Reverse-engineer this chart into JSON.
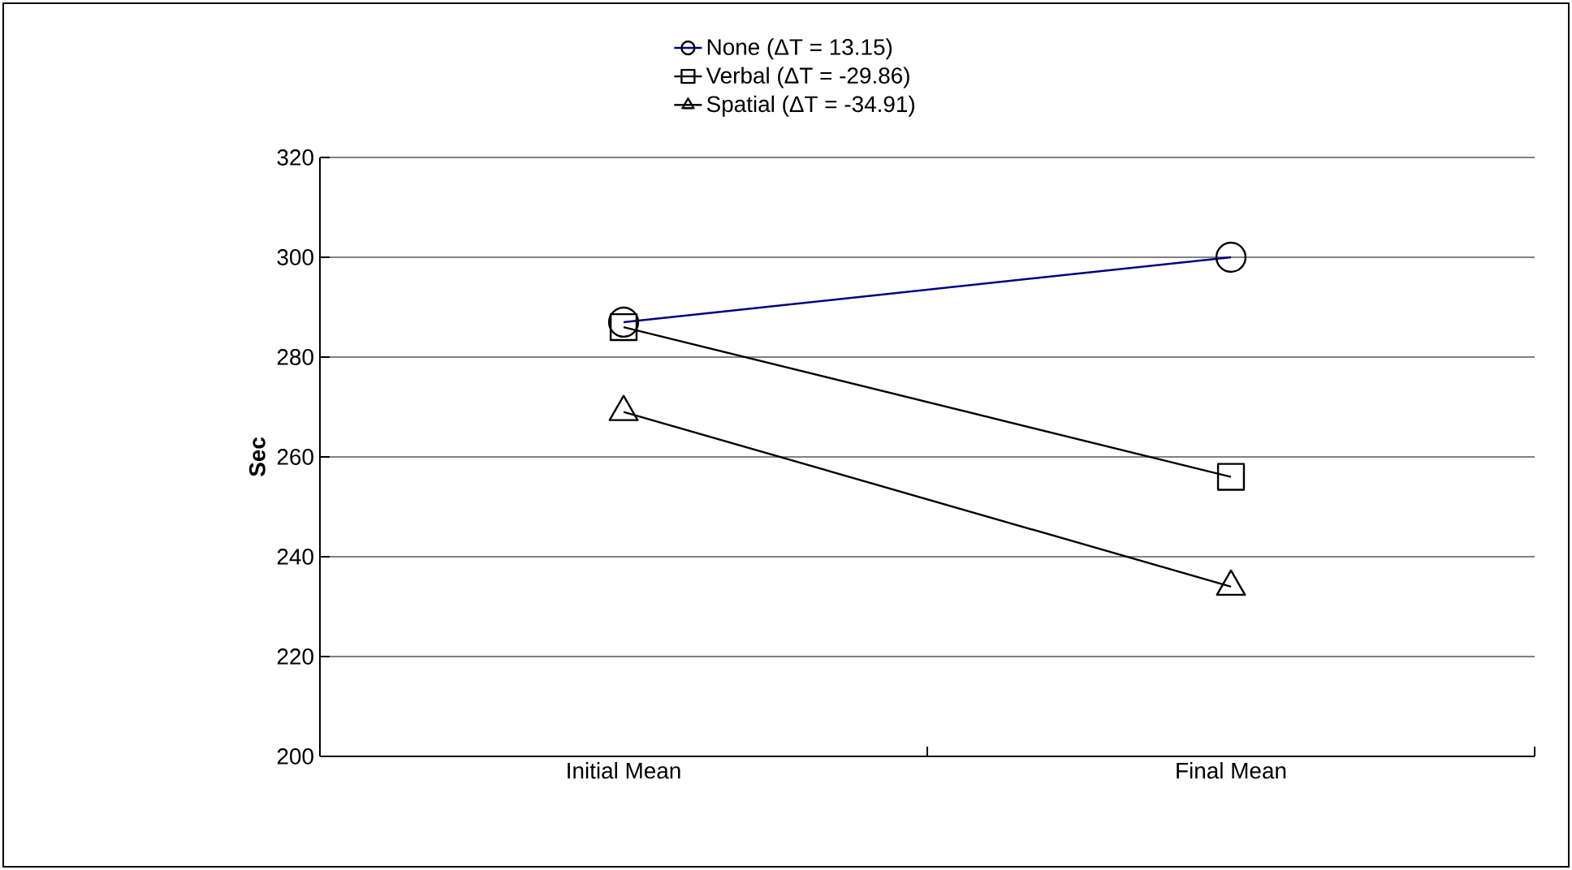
{
  "chart_data": {
    "type": "line",
    "ylabel": "Sec",
    "categories": [
      "Initial Mean",
      "Final Mean"
    ],
    "series": [
      {
        "name": "None (ΔT = 13.15)",
        "color": "#000080",
        "values": [
          287,
          300
        ],
        "marker": "circle"
      },
      {
        "name": "Verbal (ΔT = -29.86)",
        "color": "#000000",
        "values": [
          286,
          256
        ],
        "marker": "square"
      },
      {
        "name": "Spatial (ΔT = -34.91)",
        "color": "#000000",
        "values": [
          269,
          234
        ],
        "marker": "triangle"
      }
    ],
    "ylim": [
      200,
      320
    ],
    "yticks": [
      200,
      220,
      240,
      260,
      280,
      300,
      320
    ],
    "grid": "y",
    "legend": "top"
  }
}
